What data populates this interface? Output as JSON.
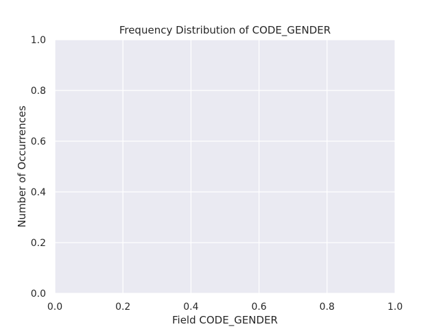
{
  "chart_data": {
    "type": "bar",
    "title": "Frequency Distribution of CODE_GENDER",
    "xlabel": "Field CODE_GENDER",
    "ylabel": "Number of Occurrences",
    "categories": [],
    "values": [],
    "xlim": [
      0.0,
      1.0
    ],
    "ylim": [
      0.0,
      1.0
    ],
    "xticks": [
      "0.0",
      "0.2",
      "0.4",
      "0.6",
      "0.8",
      "1.0"
    ],
    "yticks": [
      "0.0",
      "0.2",
      "0.4",
      "0.6",
      "0.8",
      "1.0"
    ],
    "grid": true,
    "legend": "none"
  },
  "colors": {
    "plot_background": "#EAEAF2",
    "grid": "#FFFFFF",
    "text": "#262626"
  }
}
